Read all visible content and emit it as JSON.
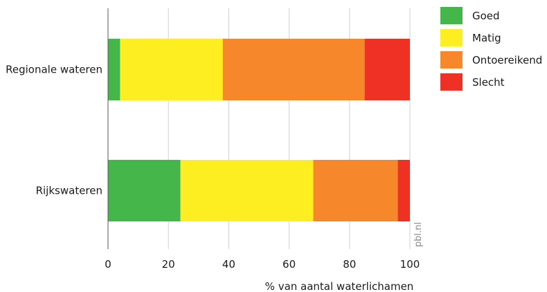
{
  "chart_data": {
    "type": "bar",
    "orientation": "horizontal",
    "stacked": true,
    "categories": [
      "Regionale wateren",
      "Rijkswateren"
    ],
    "series": [
      {
        "name": "Goed",
        "color": "#45b649",
        "values": [
          4,
          24
        ]
      },
      {
        "name": "Matig",
        "color": "#fcee21",
        "values": [
          34,
          44
        ]
      },
      {
        "name": "Ontoereikend",
        "color": "#f6872a",
        "values": [
          47,
          28
        ]
      },
      {
        "name": "Slecht",
        "color": "#ee3124",
        "values": [
          15,
          4
        ]
      }
    ],
    "xlabel": "% van aantal waterlichamen",
    "ylabel": "",
    "xlim": [
      0,
      100
    ],
    "xticks": [
      0,
      20,
      40,
      60,
      80,
      100
    ],
    "grid": "vertical",
    "legend_position": "right",
    "watermark": "pbl.nl"
  }
}
